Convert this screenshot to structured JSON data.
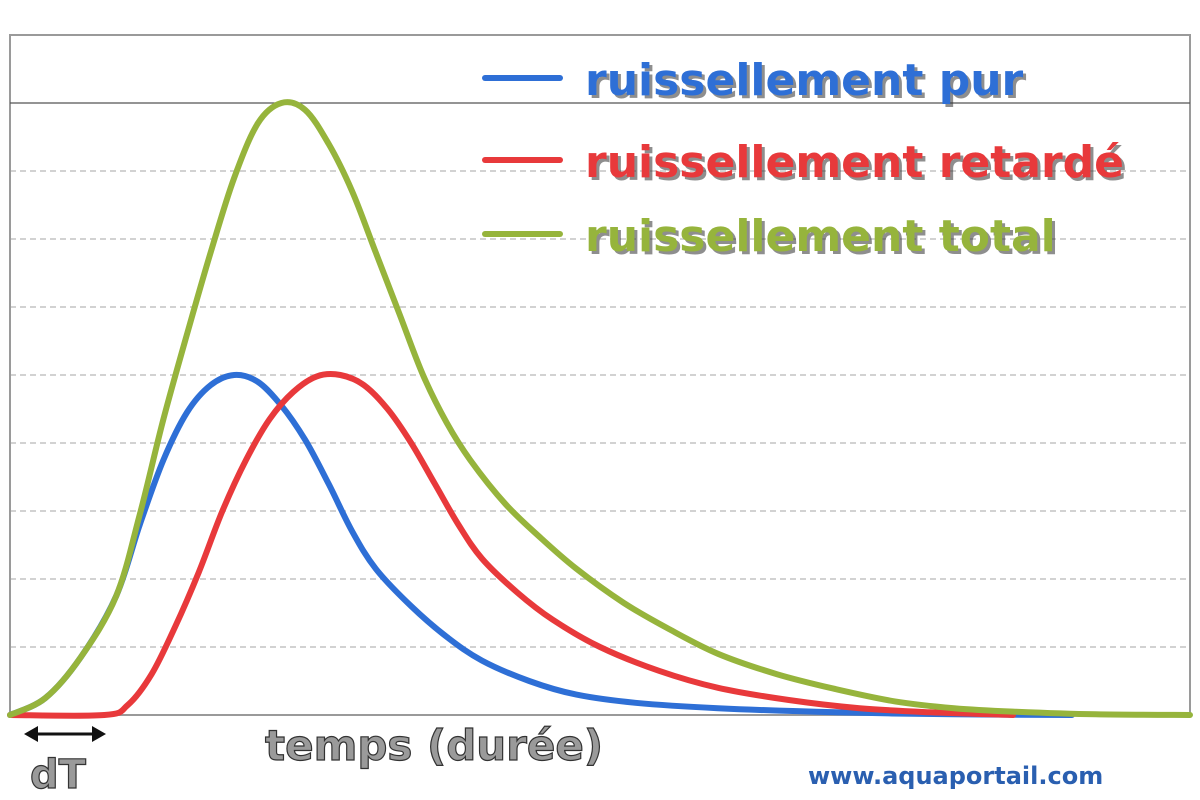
{
  "chart_data": {
    "type": "line",
    "title": "",
    "xlabel": "temps (durée)",
    "ylabel": "",
    "xlim": [
      0,
      100
    ],
    "ylim": [
      0,
      9
    ],
    "grid": true,
    "legend_position": "top-right",
    "series": [
      {
        "name": "ruissellement pur",
        "color": "#2e6fd6",
        "points": [
          [
            0,
            0
          ],
          [
            3,
            0.25
          ],
          [
            6,
            0.85
          ],
          [
            9,
            1.75
          ],
          [
            11,
            2.8
          ],
          [
            13,
            3.75
          ],
          [
            15,
            4.45
          ],
          [
            17,
            4.85
          ],
          [
            19,
            5.0
          ],
          [
            21,
            4.9
          ],
          [
            23,
            4.55
          ],
          [
            25,
            4.05
          ],
          [
            27,
            3.4
          ],
          [
            29,
            2.7
          ],
          [
            31,
            2.15
          ],
          [
            34,
            1.6
          ],
          [
            37,
            1.15
          ],
          [
            40,
            0.8
          ],
          [
            44,
            0.5
          ],
          [
            48,
            0.3
          ],
          [
            53,
            0.18
          ],
          [
            60,
            0.1
          ],
          [
            70,
            0.04
          ],
          [
            80,
            0.01
          ],
          [
            90,
            0
          ]
        ]
      },
      {
        "name": "ruissellement retardé",
        "color": "#e8393b",
        "points": [
          [
            0,
            0
          ],
          [
            8,
            0
          ],
          [
            10,
            0.15
          ],
          [
            12,
            0.6
          ],
          [
            14,
            1.3
          ],
          [
            16,
            2.1
          ],
          [
            18,
            3.0
          ],
          [
            20,
            3.75
          ],
          [
            22,
            4.35
          ],
          [
            24,
            4.75
          ],
          [
            26,
            4.98
          ],
          [
            28,
            5.0
          ],
          [
            30,
            4.85
          ],
          [
            32,
            4.5
          ],
          [
            34,
            4.0
          ],
          [
            36,
            3.4
          ],
          [
            38,
            2.8
          ],
          [
            40,
            2.3
          ],
          [
            43,
            1.8
          ],
          [
            46,
            1.4
          ],
          [
            50,
            1.0
          ],
          [
            55,
            0.65
          ],
          [
            60,
            0.4
          ],
          [
            66,
            0.22
          ],
          [
            72,
            0.1
          ],
          [
            78,
            0.04
          ],
          [
            85,
            0
          ]
        ]
      },
      {
        "name": "ruissellement total",
        "color": "#96b43c",
        "points": [
          [
            0,
            0
          ],
          [
            3,
            0.25
          ],
          [
            6,
            0.85
          ],
          [
            9,
            1.75
          ],
          [
            11,
            2.95
          ],
          [
            13,
            4.35
          ],
          [
            15,
            5.6
          ],
          [
            17,
            6.8
          ],
          [
            19,
            7.9
          ],
          [
            21,
            8.7
          ],
          [
            23,
            9.0
          ],
          [
            25,
            8.9
          ],
          [
            27,
            8.4
          ],
          [
            29,
            7.7
          ],
          [
            31,
            6.8
          ],
          [
            33,
            5.9
          ],
          [
            35,
            5.0
          ],
          [
            37,
            4.3
          ],
          [
            39,
            3.75
          ],
          [
            42,
            3.1
          ],
          [
            45,
            2.6
          ],
          [
            48,
            2.15
          ],
          [
            52,
            1.65
          ],
          [
            56,
            1.25
          ],
          [
            60,
            0.9
          ],
          [
            65,
            0.6
          ],
          [
            70,
            0.38
          ],
          [
            75,
            0.2
          ],
          [
            80,
            0.1
          ],
          [
            85,
            0.05
          ],
          [
            92,
            0.01
          ],
          [
            100,
            0
          ]
        ]
      }
    ]
  },
  "annotations": {
    "dt_label": "dT",
    "watermark": "www.aquaportail.com"
  }
}
